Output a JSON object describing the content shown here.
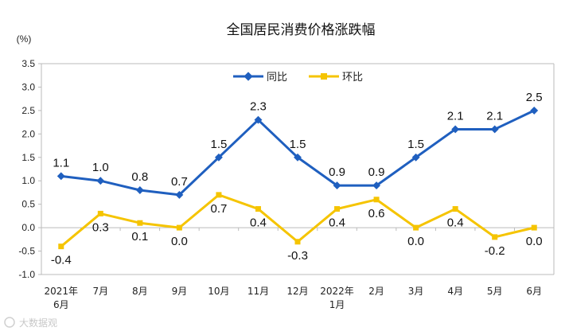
{
  "chart_data": {
    "type": "line",
    "title": "全国居民消费价格涨跌幅",
    "ylabel": "(%)",
    "ylim": [
      -1.0,
      3.5
    ],
    "yticks": [
      "-1.0",
      "-0.5",
      "0.0",
      "0.5",
      "1.0",
      "1.5",
      "2.0",
      "2.5",
      "3.0",
      "3.5"
    ],
    "categories": [
      [
        "2021年",
        "6月"
      ],
      [
        "7月"
      ],
      [
        "8月"
      ],
      [
        "9月"
      ],
      [
        "10月"
      ],
      [
        "11月"
      ],
      [
        "12月"
      ],
      [
        "2022年",
        "1月"
      ],
      [
        "2月"
      ],
      [
        "3月"
      ],
      [
        "4月"
      ],
      [
        "5月"
      ],
      [
        "6月"
      ]
    ],
    "series": [
      {
        "name": "同比",
        "color": "#1f5fbf",
        "values": [
          1.1,
          1.0,
          0.8,
          0.7,
          1.5,
          2.3,
          1.5,
          0.9,
          0.9,
          1.5,
          2.1,
          2.1,
          2.5
        ],
        "labels": [
          "1.1",
          "1.0",
          "0.8",
          "0.7",
          "1.5",
          "2.3",
          "1.5",
          "0.9",
          "0.9",
          "1.5",
          "2.1",
          "2.1",
          "2.5"
        ]
      },
      {
        "name": "环比",
        "color": "#f5c400",
        "values": [
          -0.4,
          0.3,
          0.1,
          0.0,
          0.7,
          0.4,
          -0.3,
          0.4,
          0.6,
          0.0,
          0.4,
          -0.2,
          0.0
        ],
        "labels": [
          "-0.4",
          "0.3",
          "0.1",
          "0.0",
          "0.7",
          "0.4",
          "-0.3",
          "0.4",
          "0.6",
          "0.0",
          "0.4",
          "-0.2",
          "0.0"
        ]
      }
    ],
    "legend_position": "top-center",
    "grid": false
  },
  "watermark": "大数据观"
}
